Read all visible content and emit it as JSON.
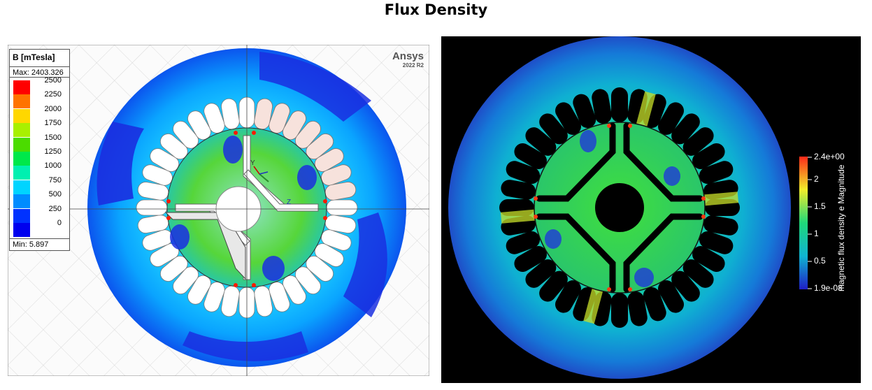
{
  "title": "Flux Density",
  "left_panel": {
    "legend_title": "B [mTesla]",
    "max_label": "Max: 2403.326",
    "min_label": "Min:   5.897",
    "ticks": [
      "2500",
      "2250",
      "2000",
      "1750",
      "1500",
      "1250",
      "1000",
      "750",
      "500",
      "250",
      "0"
    ],
    "colors": [
      "#ff0000",
      "#ff7300",
      "#ffd700",
      "#a8f000",
      "#4bdc00",
      "#00e84a",
      "#00f0b0",
      "#00d4ff",
      "#008cff",
      "#0032ff",
      "#0000ee"
    ],
    "brand": "Ansys",
    "version": "2022 R2",
    "axis_labels": {
      "y": "Y",
      "z": "Z",
      "x": "X"
    }
  },
  "right_panel": {
    "colorbar_ticks": [
      "2.4e+00",
      "2",
      "1.5",
      "1",
      "0.5",
      "1.9e-08"
    ],
    "colorbar_title": "magnetic flux density e Magnitude",
    "colors": {
      "high": "#ff2a1a",
      "mid_high": "#f2ee2a",
      "mid": "#1fd87a",
      "mid_low": "#0fb4d2",
      "low": "#1f1ec8"
    }
  }
}
